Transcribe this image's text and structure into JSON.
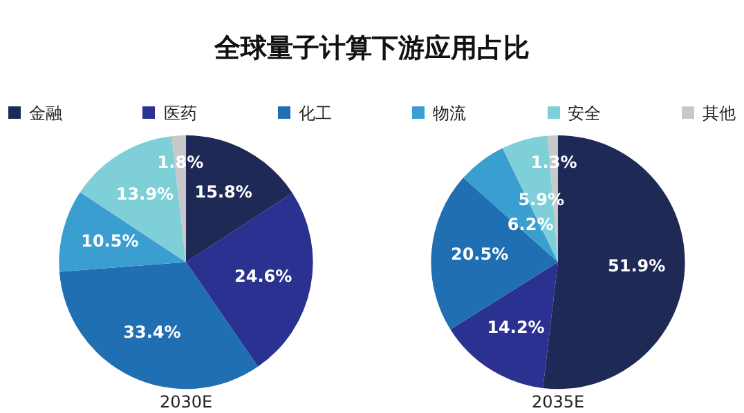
{
  "chart_data": [
    {
      "type": "pie",
      "title": "全球量子计算下游应用占比",
      "subtitle": "2030E",
      "legend": "top",
      "categories": [
        "金融",
        "医药",
        "化工",
        "物流",
        "安全",
        "其他"
      ],
      "values": [
        15.8,
        24.6,
        33.4,
        10.5,
        13.9,
        1.8
      ],
      "value_labels": [
        "15.8%",
        "24.6%",
        "33.4%",
        "10.5%",
        "13.9%",
        "1.8%"
      ],
      "colors": [
        "#1e2a55",
        "#2b3190",
        "#1f6fb2",
        "#3a9fd0",
        "#7fcfd8",
        "#c8c8c8"
      ]
    },
    {
      "type": "pie",
      "subtitle": "2035E",
      "categories": [
        null,
        null,
        null,
        null,
        null,
        null
      ],
      "values": [
        51.9,
        14.2,
        20.5,
        6.2,
        5.9,
        1.3
      ],
      "value_labels": [
        "51.9%",
        "14.2%",
        "20.5%",
        "6.2%",
        "5.9%",
        "1.3%"
      ],
      "colors": [
        "#1e2a55",
        "#2b3190",
        "#1f6fb2",
        "#3a9fd0",
        "#7fcfd8",
        "#c8c8c8"
      ]
    }
  ]
}
